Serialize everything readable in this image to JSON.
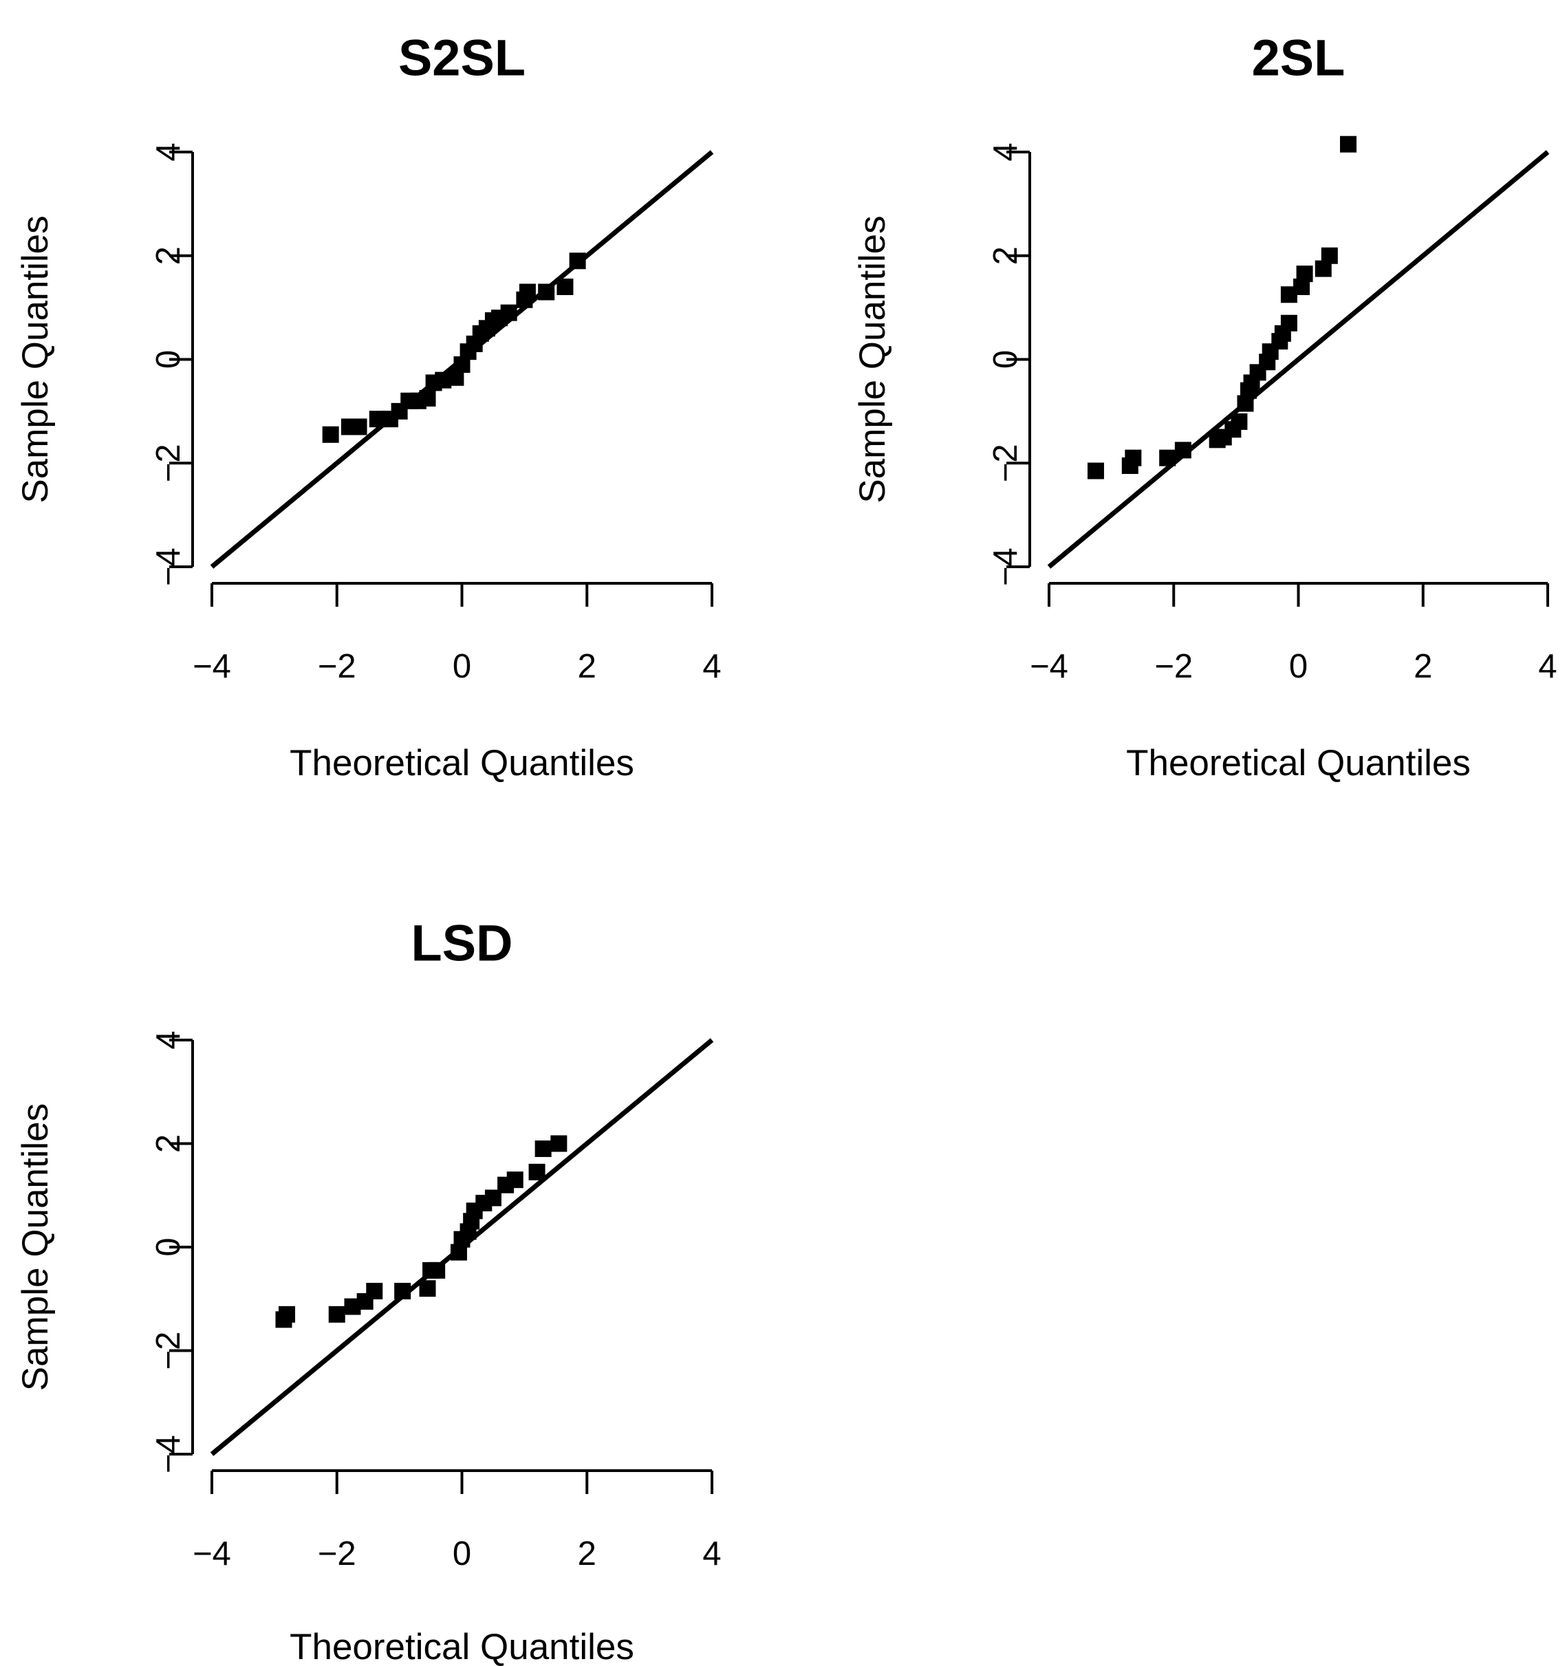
{
  "chart_data": [
    {
      "type": "scatter",
      "title": "S2SL",
      "xlabel": "Theoretical Quantiles",
      "ylabel": "Sample Quantiles",
      "xlim": [
        -4,
        4
      ],
      "ylim": [
        -4,
        4
      ],
      "xticks": [
        "−4",
        "−2",
        "0",
        "2",
        "4"
      ],
      "yticks": [
        "−4",
        "−2",
        "0",
        "2",
        "4"
      ],
      "reference_line": {
        "from": [
          -4,
          -4
        ],
        "to": [
          4,
          4
        ]
      },
      "points": [
        [
          -2.1,
          -1.45
        ],
        [
          -1.8,
          -1.3
        ],
        [
          -1.65,
          -1.3
        ],
        [
          -1.35,
          -1.15
        ],
        [
          -1.15,
          -1.15
        ],
        [
          -1.0,
          -1.0
        ],
        [
          -0.85,
          -0.8
        ],
        [
          -0.7,
          -0.8
        ],
        [
          -0.55,
          -0.75
        ],
        [
          -0.45,
          -0.45
        ],
        [
          -0.3,
          -0.4
        ],
        [
          -0.1,
          -0.35
        ],
        [
          0.0,
          -0.1
        ],
        [
          0.1,
          0.15
        ],
        [
          0.2,
          0.3
        ],
        [
          0.3,
          0.5
        ],
        [
          0.4,
          0.6
        ],
        [
          0.5,
          0.75
        ],
        [
          0.6,
          0.8
        ],
        [
          0.75,
          0.9
        ],
        [
          1.0,
          1.15
        ],
        [
          1.05,
          1.3
        ],
        [
          1.35,
          1.3
        ],
        [
          1.65,
          1.4
        ],
        [
          1.85,
          1.9
        ]
      ]
    },
    {
      "type": "scatter",
      "title": "2SL",
      "xlabel": "Theoretical Quantiles",
      "ylabel": "Sample Quantiles",
      "xlim": [
        -4,
        4
      ],
      "ylim": [
        -4,
        4
      ],
      "xticks": [
        "−4",
        "−2",
        "0",
        "2",
        "4"
      ],
      "yticks": [
        "−4",
        "−2",
        "0",
        "2",
        "4"
      ],
      "reference_line": {
        "from": [
          -4,
          -4
        ],
        "to": [
          4,
          4
        ]
      },
      "points": [
        [
          -3.25,
          -2.15
        ],
        [
          -2.7,
          -2.05
        ],
        [
          -2.65,
          -1.9
        ],
        [
          -2.1,
          -1.9
        ],
        [
          -1.85,
          -1.75
        ],
        [
          -1.3,
          -1.55
        ],
        [
          -1.2,
          -1.5
        ],
        [
          -1.05,
          -1.35
        ],
        [
          -0.95,
          -1.2
        ],
        [
          -0.85,
          -0.85
        ],
        [
          -0.8,
          -0.6
        ],
        [
          -0.75,
          -0.45
        ],
        [
          -0.65,
          -0.25
        ],
        [
          -0.5,
          -0.05
        ],
        [
          -0.45,
          0.15
        ],
        [
          -0.3,
          0.35
        ],
        [
          -0.25,
          0.5
        ],
        [
          -0.15,
          0.7
        ],
        [
          -0.15,
          1.25
        ],
        [
          0.05,
          1.4
        ],
        [
          0.1,
          1.65
        ],
        [
          0.4,
          1.75
        ],
        [
          0.5,
          2.0
        ],
        [
          0.8,
          4.15
        ]
      ]
    },
    {
      "type": "scatter",
      "title": "LSD",
      "xlabel": "Theoretical Quantiles",
      "ylabel": "Sample Quantiles",
      "xlim": [
        -4,
        4
      ],
      "ylim": [
        -4,
        4
      ],
      "xticks": [
        "−4",
        "−2",
        "0",
        "2",
        "4"
      ],
      "yticks": [
        "−4",
        "−2",
        "0",
        "2",
        "4"
      ],
      "reference_line": {
        "from": [
          -4,
          -4
        ],
        "to": [
          4,
          4
        ]
      },
      "points": [
        [
          -2.85,
          -1.4
        ],
        [
          -2.8,
          -1.3
        ],
        [
          -2.0,
          -1.3
        ],
        [
          -1.75,
          -1.15
        ],
        [
          -1.55,
          -1.05
        ],
        [
          -1.4,
          -0.85
        ],
        [
          -0.95,
          -0.85
        ],
        [
          -0.55,
          -0.8
        ],
        [
          -0.5,
          -0.45
        ],
        [
          -0.4,
          -0.45
        ],
        [
          -0.05,
          -0.1
        ],
        [
          0.0,
          0.15
        ],
        [
          0.1,
          0.3
        ],
        [
          0.15,
          0.5
        ],
        [
          0.2,
          0.7
        ],
        [
          0.35,
          0.85
        ],
        [
          0.5,
          0.95
        ],
        [
          0.7,
          1.2
        ],
        [
          0.85,
          1.3
        ],
        [
          1.2,
          1.45
        ],
        [
          1.3,
          1.9
        ],
        [
          1.55,
          2.0
        ]
      ]
    }
  ]
}
